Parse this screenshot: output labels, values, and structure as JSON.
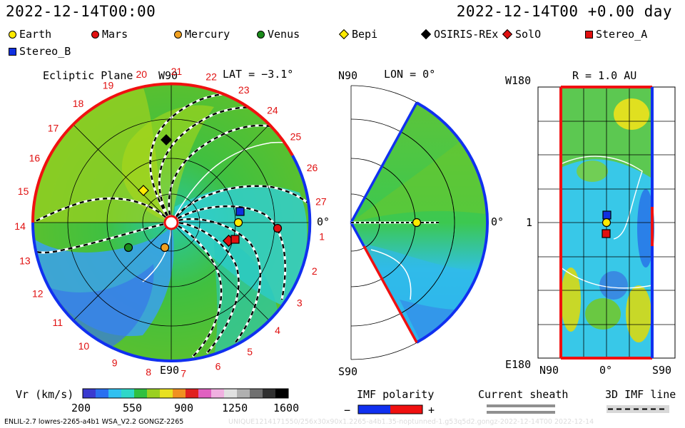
{
  "header": {
    "time_left": "2022-12-14T00:00",
    "time_right": "2022-12-14T00 +0.00 day"
  },
  "legend": [
    {
      "label": "Earth",
      "shape": "circle",
      "color": "#ffea00"
    },
    {
      "label": "Mars",
      "shape": "circle",
      "color": "#e01010"
    },
    {
      "label": "Mercury",
      "shape": "circle",
      "color": "#f0a020"
    },
    {
      "label": "Venus",
      "shape": "circle",
      "color": "#1a8a1a"
    },
    {
      "label": "Bepi",
      "shape": "diamond",
      "color": "#ffea00"
    },
    {
      "label": "OSIRIS-REx",
      "shape": "diamond",
      "color": "#000000"
    },
    {
      "label": "SolO",
      "shape": "diamond",
      "color": "#e01010"
    },
    {
      "label": "Stereo_A",
      "shape": "square",
      "color": "#e01010"
    },
    {
      "label": "Stereo_B",
      "shape": "square",
      "color": "#1030e0"
    }
  ],
  "ecliptic": {
    "title": "Ecliptic Plane",
    "lat_label": "LAT = −3.1°",
    "top_label": "W90",
    "bottom_label": "E90",
    "right_label": "0°",
    "carrington_ticks": [
      "20",
      "21",
      "22",
      "23",
      "24",
      "25",
      "26",
      "27",
      "1",
      "2",
      "3",
      "4",
      "5",
      "6",
      "7",
      "8",
      "9",
      "10",
      "11",
      "12",
      "13",
      "14",
      "15",
      "16",
      "17",
      "18",
      "19"
    ]
  },
  "meridional": {
    "title": "LON = 0°",
    "top_label": "N90",
    "bottom_label": "S90",
    "right_label": "0°"
  },
  "shell": {
    "title": "R = 1.0 AU",
    "top_left_label": "W180",
    "bottom_left_label": "E180",
    "mid_left_label": "1",
    "x_labels": [
      "N90",
      "0°",
      "S90"
    ]
  },
  "colorbar": {
    "label": "Vr (km/s)",
    "ticks": [
      "200",
      "550",
      "900",
      "1250",
      "1600"
    ],
    "colors": [
      "#3a3ad0",
      "#2a70f0",
      "#30c0f0",
      "#2ed7c8",
      "#30c040",
      "#9ad020",
      "#e8e020",
      "#f09020",
      "#e02020",
      "#e060c0",
      "#f0b0e0",
      "#e0e0e0",
      "#b0b0b0",
      "#707070",
      "#303030",
      "#000000"
    ]
  },
  "imf_polarity": {
    "label": "IMF polarity",
    "minus": "−",
    "plus": "+",
    "neg_color": "#1030f0",
    "pos_color": "#f01010"
  },
  "current_sheath": {
    "label": "Current sheath"
  },
  "imf_line": {
    "label": "3D IMF line"
  },
  "footer": {
    "left": "ENLIL-2.7 lowres-2265-a4b1 WSA_V2.2 GONGZ-2265",
    "right": "UNIQUE1214171550/256x30x90x1.2265-a4b1.35-noptunned-1.g53q5d2.gongz-2022-12-14T00 2022-12-14"
  }
}
